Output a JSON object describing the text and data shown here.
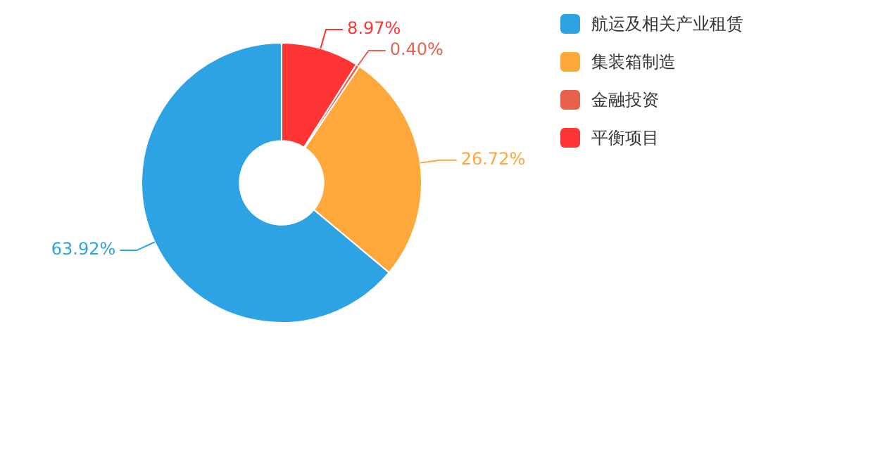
{
  "chart_data": {
    "type": "donut",
    "categories": [
      "航运及相关产业租赁",
      "集装箱制造",
      "金融投资",
      "平衡项目"
    ],
    "values": [
      63.92,
      26.72,
      0.4,
      8.97
    ],
    "colors": [
      "#2ea3e4",
      "#ffa83c",
      "#e8614b",
      "#ff3535"
    ],
    "value_labels": [
      "63.92%",
      "26.72%",
      "0.40%",
      "8.97%"
    ],
    "legend": "top right"
  }
}
